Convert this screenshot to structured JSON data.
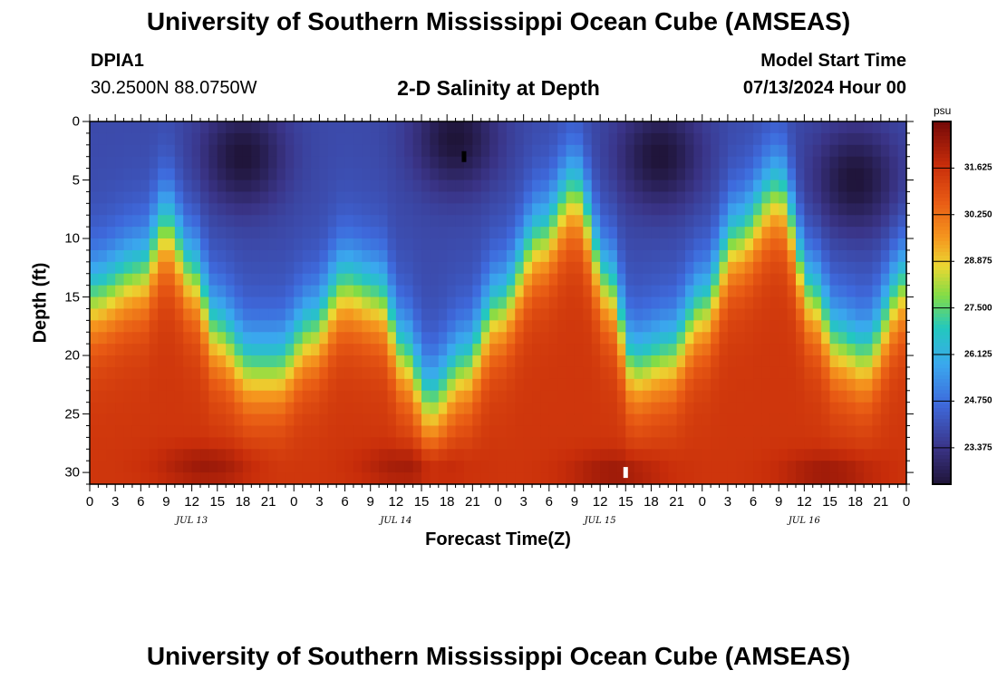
{
  "header": {
    "title": "University of Southern Mississippi Ocean Cube (AMSEAS)",
    "station_id": "DPIA1",
    "coordinates": "30.2500N  88.0750W",
    "subtitle": "2-D Salinity at Depth",
    "model_start_label": "Model Start Time",
    "model_start_value": "07/13/2024 Hour 00"
  },
  "footer": {
    "title": "University of Southern Mississippi Ocean Cube (AMSEAS)"
  },
  "chart_data": {
    "type": "heatmap",
    "title": "2-D Salinity at Depth",
    "xlabel": "Forecast Time(Z)",
    "ylabel": "Depth (ft)",
    "x_range_hours": [
      0,
      96
    ],
    "ylim": [
      31,
      0
    ],
    "x_tick_labels": [
      "0",
      "3",
      "6",
      "9",
      "12",
      "15",
      "18",
      "21",
      "0",
      "3",
      "6",
      "9",
      "12",
      "15",
      "18",
      "21",
      "0",
      "3",
      "6",
      "9",
      "12",
      "15",
      "18",
      "21",
      "0",
      "3",
      "6",
      "9",
      "12",
      "15",
      "18",
      "21",
      "0"
    ],
    "day_labels": [
      {
        "label": "JUL 13",
        "hour": 12
      },
      {
        "label": "JUL 14",
        "hour": 36
      },
      {
        "label": "JUL 15",
        "hour": 60
      },
      {
        "label": "JUL 16",
        "hour": 84
      }
    ],
    "y_ticks": [
      0,
      5,
      10,
      15,
      20,
      25,
      30
    ],
    "y_tick_labels": [
      "0",
      "5",
      "10",
      "15",
      "20",
      "25",
      "30"
    ],
    "colorbar": {
      "unit": "psu",
      "range": [
        22.3,
        33.0
      ],
      "tick_values": [
        31.625,
        30.25,
        28.875,
        27.5,
        26.125,
        24.75,
        23.375
      ],
      "tick_labels": [
        "31.625",
        "30.250",
        "28.875",
        "27.500",
        "26.125",
        "24.750",
        "23.375"
      ]
    },
    "pycnocline_depth_ft": [
      {
        "hour": 0,
        "depth": 11
      },
      {
        "hour": 6,
        "depth": 9
      },
      {
        "hour": 9,
        "depth": 5
      },
      {
        "hour": 12,
        "depth": 9
      },
      {
        "hour": 15,
        "depth": 14
      },
      {
        "hour": 19,
        "depth": 17
      },
      {
        "hour": 22,
        "depth": 17
      },
      {
        "hour": 26,
        "depth": 14
      },
      {
        "hour": 30,
        "depth": 10
      },
      {
        "hour": 34,
        "depth": 11
      },
      {
        "hour": 37,
        "depth": 16
      },
      {
        "hour": 40,
        "depth": 20
      },
      {
        "hour": 44,
        "depth": 17
      },
      {
        "hour": 48,
        "depth": 12
      },
      {
        "hour": 53,
        "depth": 6
      },
      {
        "hour": 57,
        "depth": 2
      },
      {
        "hour": 61,
        "depth": 10
      },
      {
        "hour": 64,
        "depth": 17
      },
      {
        "hour": 68,
        "depth": 16
      },
      {
        "hour": 72,
        "depth": 12
      },
      {
        "hour": 76,
        "depth": 6
      },
      {
        "hour": 81,
        "depth": 2
      },
      {
        "hour": 85,
        "depth": 11
      },
      {
        "hour": 88,
        "depth": 15
      },
      {
        "hour": 91,
        "depth": 16
      },
      {
        "hour": 96,
        "depth": 10
      }
    ],
    "surface_low_centers": [
      {
        "hour": 18,
        "depth": 3
      },
      {
        "hour": 43,
        "depth": 1.5
      },
      {
        "hour": 67,
        "depth": 3
      },
      {
        "hour": 90,
        "depth": 5
      }
    ],
    "bottom_high_centers": [
      {
        "hour": 14,
        "depth": 29.5
      },
      {
        "hour": 38,
        "depth": 29.5
      },
      {
        "hour": 62,
        "depth": 30
      },
      {
        "hour": 87,
        "depth": 30
      }
    ],
    "missing_markers": [
      {
        "hour": 44,
        "depth": 3,
        "color": "#000000"
      },
      {
        "hour": 63,
        "depth": 30,
        "color": "#ffffff"
      }
    ]
  }
}
